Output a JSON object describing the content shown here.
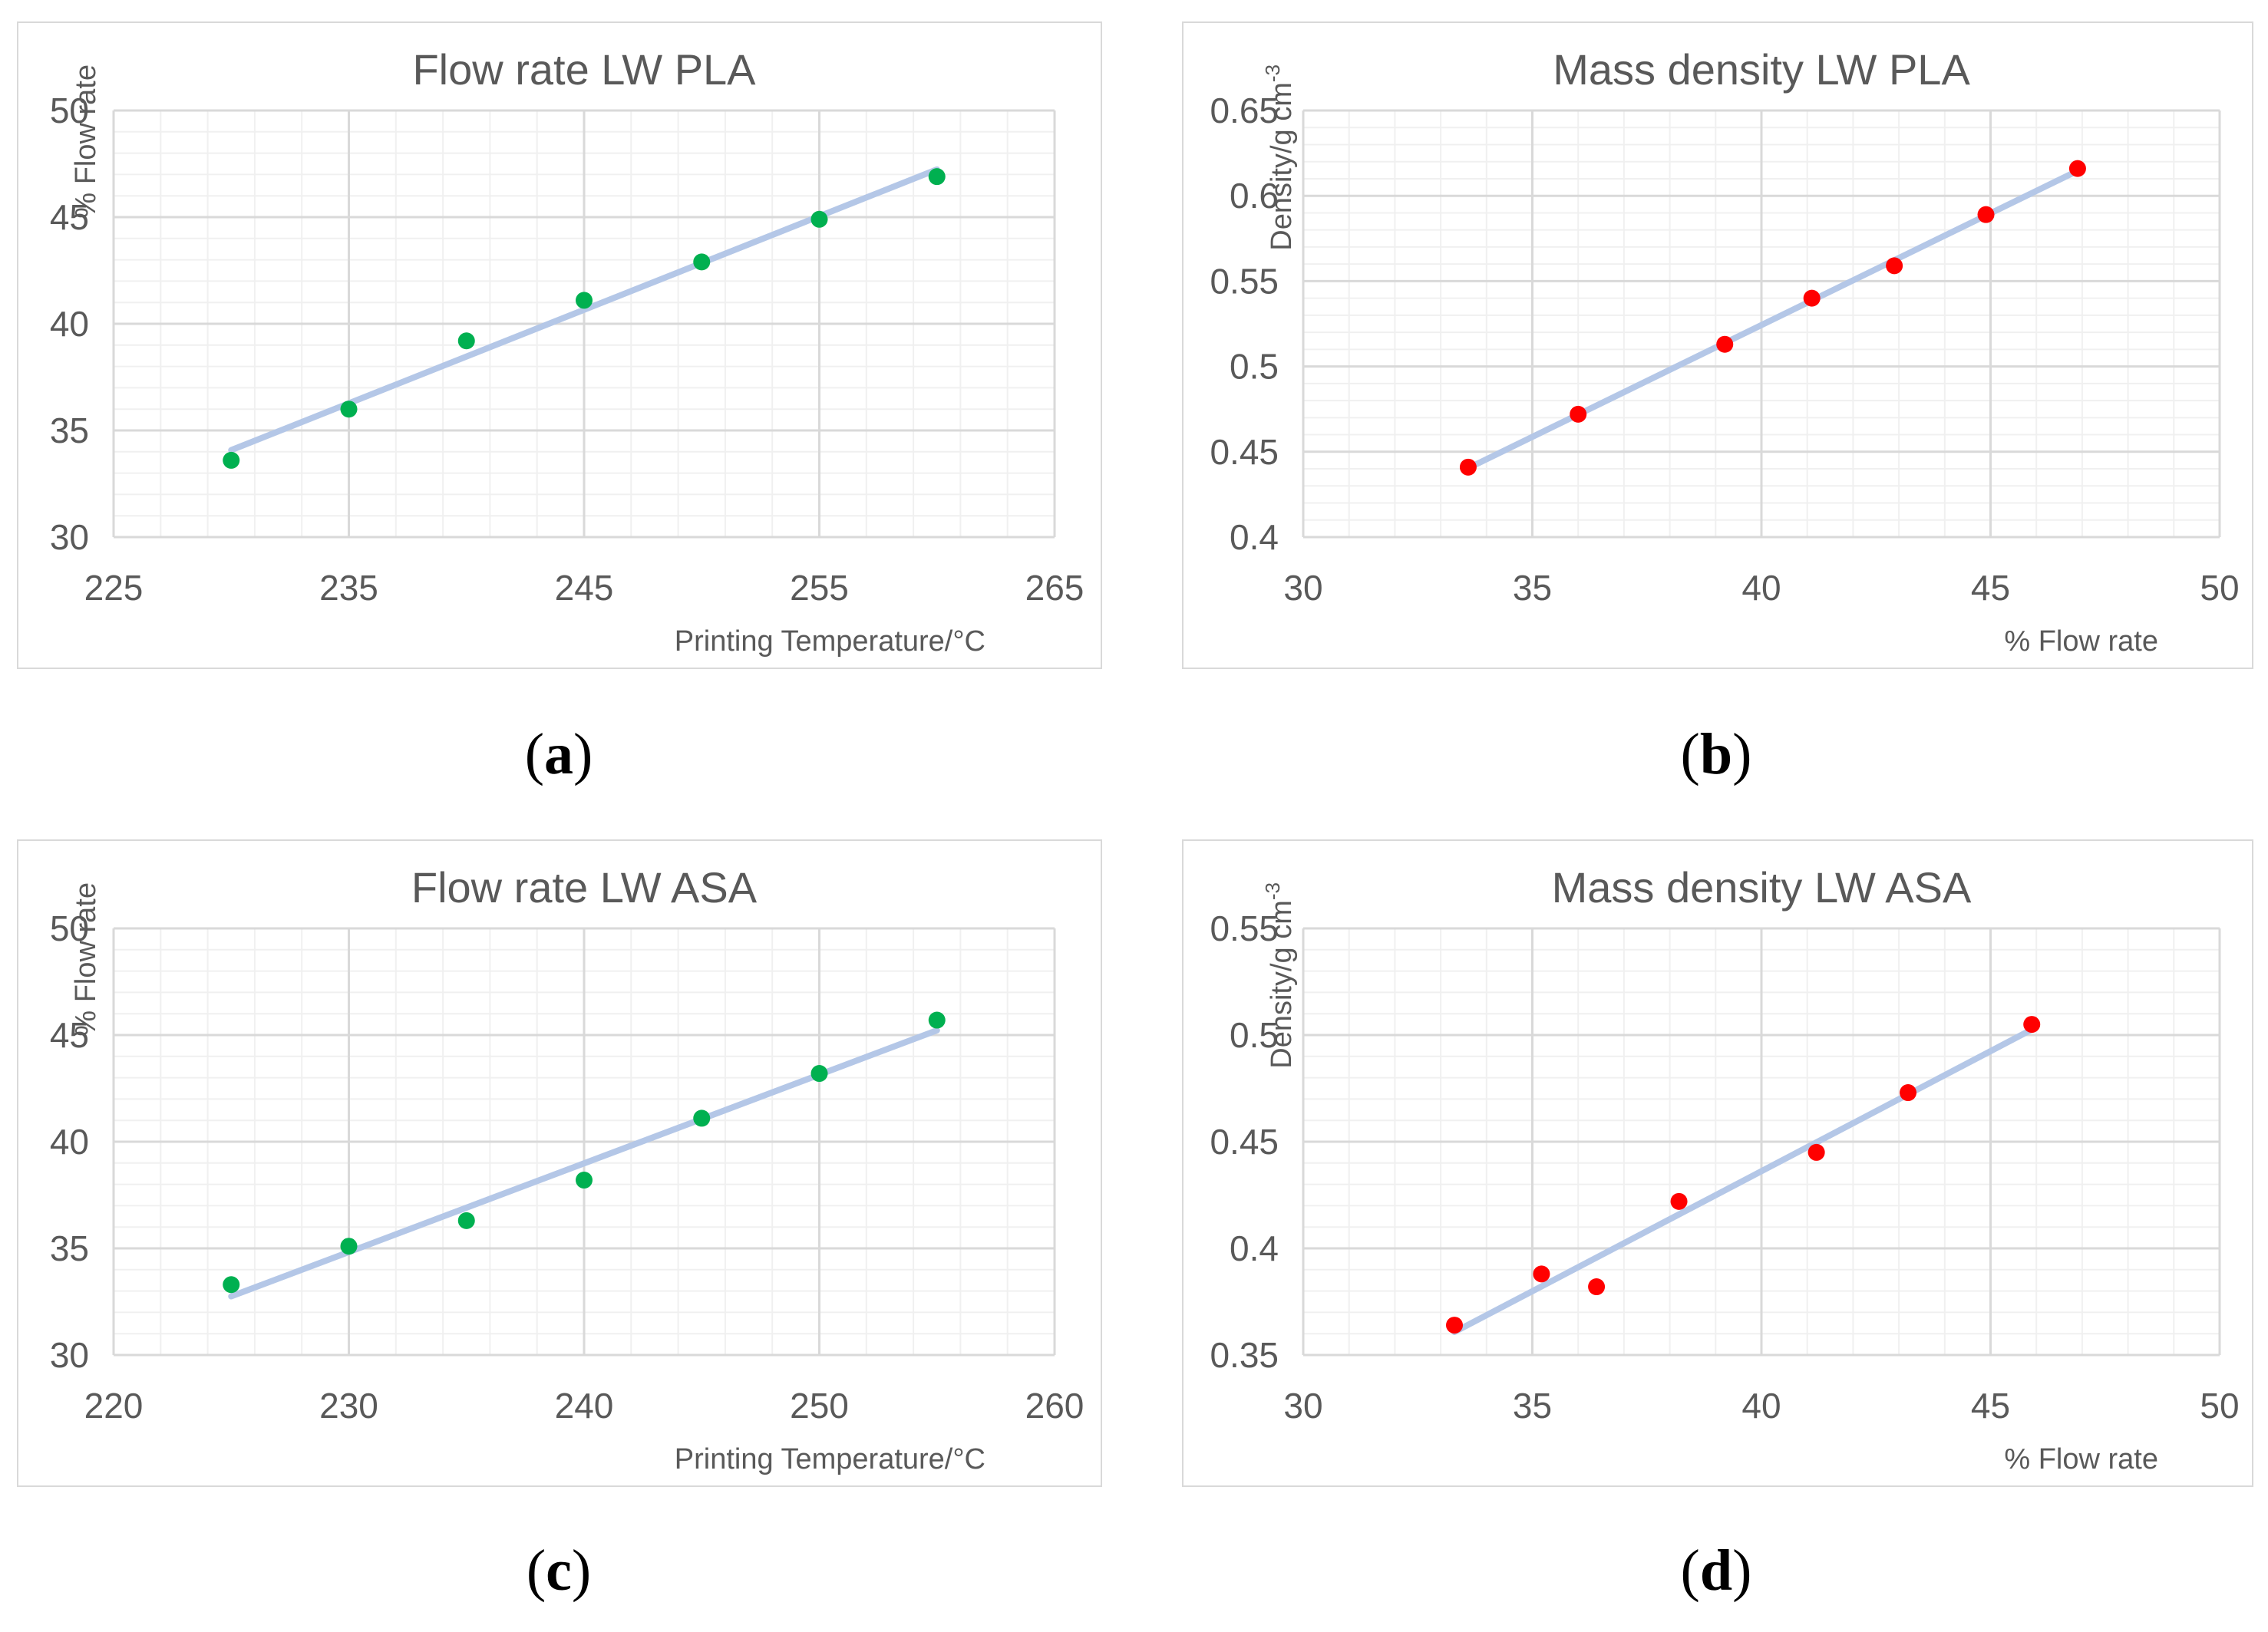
{
  "chart_data": [
    {
      "id": "a",
      "type": "scatter",
      "title": "Flow rate LW PLA",
      "xlabel": "Printing Temperature/°C",
      "ylabel": "% Flow rate",
      "xlim": [
        225,
        265
      ],
      "ylim": [
        30,
        50
      ],
      "xticks": [
        225,
        235,
        245,
        255,
        265
      ],
      "yticks": [
        30,
        35,
        40,
        45,
        50
      ],
      "grid": "on",
      "point_color": "#00b050",
      "trendline": true,
      "trendline_color": "#b4c7e7",
      "points": [
        [
          230,
          33.6
        ],
        [
          235,
          36.0
        ],
        [
          240,
          39.2
        ],
        [
          245,
          41.1
        ],
        [
          250,
          42.9
        ],
        [
          255,
          44.9
        ],
        [
          260,
          46.9
        ]
      ]
    },
    {
      "id": "b",
      "type": "scatter",
      "title": "Mass density LW PLA",
      "xlabel": "% Flow rate",
      "ylabel": "Density/g cm",
      "ylabel_sup": "-3",
      "xlim": [
        30,
        50
      ],
      "ylim": [
        0.4,
        0.65
      ],
      "xticks": [
        30,
        35,
        40,
        45,
        50
      ],
      "yticks": [
        0.4,
        0.45,
        0.5,
        0.55,
        0.6,
        0.65
      ],
      "grid": "on",
      "point_color": "#ff0000",
      "trendline": true,
      "trendline_color": "#b4c7e7",
      "points": [
        [
          33.6,
          0.441
        ],
        [
          36.0,
          0.472
        ],
        [
          39.2,
          0.513
        ],
        [
          41.1,
          0.54
        ],
        [
          42.9,
          0.559
        ],
        [
          44.9,
          0.589
        ],
        [
          46.9,
          0.616
        ]
      ]
    },
    {
      "id": "c",
      "type": "scatter",
      "title": "Flow rate LW ASA",
      "xlabel": "Printing Temperature/°C",
      "ylabel": "% Flow rate",
      "xlim": [
        220,
        260
      ],
      "ylim": [
        30,
        50
      ],
      "xticks": [
        220,
        230,
        240,
        250,
        260
      ],
      "yticks": [
        30,
        35,
        40,
        45,
        50
      ],
      "grid": "on",
      "point_color": "#00b050",
      "trendline": true,
      "trendline_color": "#b4c7e7",
      "points": [
        [
          225,
          33.3
        ],
        [
          230,
          35.1
        ],
        [
          235,
          36.3
        ],
        [
          240,
          38.2
        ],
        [
          245,
          41.1
        ],
        [
          250,
          43.2
        ],
        [
          255,
          45.7
        ]
      ]
    },
    {
      "id": "d",
      "type": "scatter",
      "title": "Mass density LW ASA",
      "xlabel": "% Flow rate",
      "ylabel": "Density/g cm",
      "ylabel_sup": "-3",
      "xlim": [
        30,
        50
      ],
      "ylim": [
        0.35,
        0.55
      ],
      "xticks": [
        30,
        35,
        40,
        45,
        50
      ],
      "yticks": [
        0.35,
        0.4,
        0.45,
        0.5,
        0.55
      ],
      "grid": "on",
      "point_color": "#ff0000",
      "trendline": true,
      "trendline_color": "#b4c7e7",
      "points": [
        [
          33.3,
          0.364
        ],
        [
          35.2,
          0.388
        ],
        [
          36.4,
          0.382
        ],
        [
          38.2,
          0.422
        ],
        [
          41.2,
          0.445
        ],
        [
          43.2,
          0.473
        ],
        [
          45.9,
          0.505
        ]
      ]
    }
  ],
  "captions": [
    {
      "open": "(",
      "letter": "a",
      "close": ")"
    },
    {
      "open": "(",
      "letter": "b",
      "close": ")"
    },
    {
      "open": "(",
      "letter": "c",
      "close": ")"
    },
    {
      "open": "(",
      "letter": "d",
      "close": ")"
    }
  ]
}
